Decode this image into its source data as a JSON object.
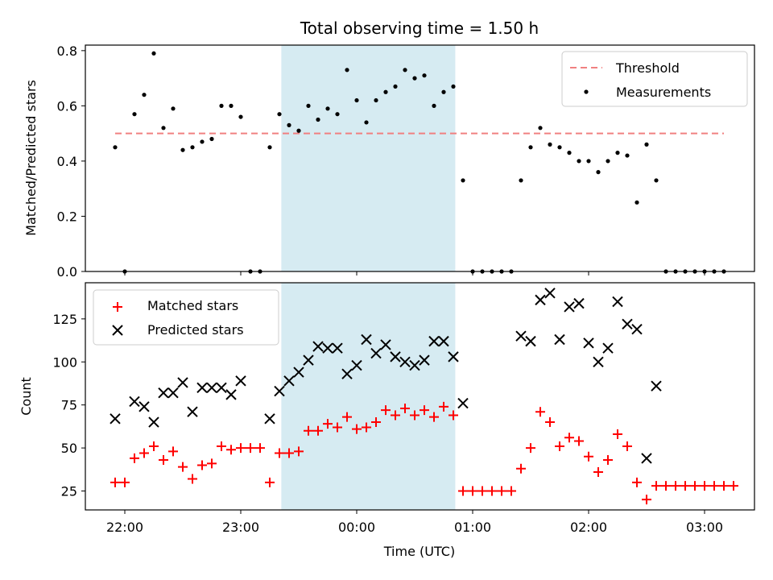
{
  "chart_data": {
    "type": "scatter",
    "title": "Total observing time = 1.50 h",
    "xlabel": "Time (UTC)",
    "x_tick_labels": [
      "22:00",
      "23:00",
      "00:00",
      "01:00",
      "02:00",
      "03:00"
    ],
    "highlight_span": [
      "23:21",
      "00:51"
    ],
    "panels": [
      {
        "name": "fraction",
        "ylabel": "Matched/Predicted stars",
        "ylim": [
          0,
          0.82
        ],
        "y_ticks": [
          "0.0",
          "0.2",
          "0.4",
          "0.6",
          "0.8"
        ],
        "legend_position": "top-right",
        "threshold": {
          "name": "Threshold",
          "value": 0.5,
          "color": "#f08080",
          "x_range": [
            "21:55",
            "03:10"
          ]
        },
        "series": [
          {
            "name": "Measurements",
            "marker": "dot",
            "color": "#000000",
            "points": [
              [
                "21:55",
                0.45
              ],
              [
                "22:00",
                0.0
              ],
              [
                "22:05",
                0.57
              ],
              [
                "22:10",
                0.64
              ],
              [
                "22:15",
                0.79
              ],
              [
                "22:20",
                0.52
              ],
              [
                "22:25",
                0.59
              ],
              [
                "22:30",
                0.44
              ],
              [
                "22:35",
                0.45
              ],
              [
                "22:40",
                0.47
              ],
              [
                "22:45",
                0.48
              ],
              [
                "22:50",
                0.6
              ],
              [
                "22:55",
                0.6
              ],
              [
                "23:00",
                0.56
              ],
              [
                "23:05",
                0.0
              ],
              [
                "23:10",
                0.0
              ],
              [
                "23:15",
                0.45
              ],
              [
                "23:20",
                0.57
              ],
              [
                "23:25",
                0.53
              ],
              [
                "23:30",
                0.51
              ],
              [
                "23:35",
                0.6
              ],
              [
                "23:40",
                0.55
              ],
              [
                "23:45",
                0.59
              ],
              [
                "23:50",
                0.57
              ],
              [
                "23:55",
                0.73
              ],
              [
                "00:00",
                0.62
              ],
              [
                "00:05",
                0.54
              ],
              [
                "00:10",
                0.62
              ],
              [
                "00:15",
                0.65
              ],
              [
                "00:20",
                0.67
              ],
              [
                "00:25",
                0.73
              ],
              [
                "00:30",
                0.7
              ],
              [
                "00:35",
                0.71
              ],
              [
                "00:40",
                0.6
              ],
              [
                "00:45",
                0.65
              ],
              [
                "00:50",
                0.67
              ],
              [
                "00:55",
                0.33
              ],
              [
                "01:00",
                0.0
              ],
              [
                "01:05",
                0.0
              ],
              [
                "01:10",
                0.0
              ],
              [
                "01:15",
                0.0
              ],
              [
                "01:20",
                0.0
              ],
              [
                "01:25",
                0.33
              ],
              [
                "01:30",
                0.45
              ],
              [
                "01:35",
                0.52
              ],
              [
                "01:40",
                0.46
              ],
              [
                "01:45",
                0.45
              ],
              [
                "01:50",
                0.43
              ],
              [
                "01:55",
                0.4
              ],
              [
                "02:00",
                0.4
              ],
              [
                "02:05",
                0.36
              ],
              [
                "02:10",
                0.4
              ],
              [
                "02:15",
                0.43
              ],
              [
                "02:20",
                0.42
              ],
              [
                "02:25",
                0.25
              ],
              [
                "02:30",
                0.46
              ],
              [
                "02:35",
                0.33
              ],
              [
                "02:40",
                0.0
              ],
              [
                "02:45",
                0.0
              ],
              [
                "02:50",
                0.0
              ],
              [
                "02:55",
                0.0
              ],
              [
                "03:00",
                0.0
              ],
              [
                "03:05",
                0.0
              ],
              [
                "03:10",
                0.0
              ]
            ]
          }
        ]
      },
      {
        "name": "counts",
        "ylabel": "Count",
        "ylim": [
          14,
          146
        ],
        "y_ticks": [
          "25",
          "50",
          "75",
          "100",
          "125"
        ],
        "legend_position": "top-left",
        "series": [
          {
            "name": "Matched stars",
            "marker": "plus",
            "color": "#ff0000",
            "points": [
              [
                "21:55",
                30
              ],
              [
                "22:00",
                30
              ],
              [
                "22:05",
                44
              ],
              [
                "22:10",
                47
              ],
              [
                "22:15",
                51
              ],
              [
                "22:20",
                43
              ],
              [
                "22:25",
                48
              ],
              [
                "22:30",
                39
              ],
              [
                "22:35",
                32
              ],
              [
                "22:40",
                40
              ],
              [
                "22:45",
                41
              ],
              [
                "22:50",
                51
              ],
              [
                "22:55",
                49
              ],
              [
                "23:00",
                50
              ],
              [
                "23:05",
                50
              ],
              [
                "23:10",
                50
              ],
              [
                "23:15",
                30
              ],
              [
                "23:20",
                47
              ],
              [
                "23:25",
                47
              ],
              [
                "23:30",
                48
              ],
              [
                "23:35",
                60
              ],
              [
                "23:40",
                60
              ],
              [
                "23:45",
                64
              ],
              [
                "23:50",
                62
              ],
              [
                "23:55",
                68
              ],
              [
                "00:00",
                61
              ],
              [
                "00:05",
                62
              ],
              [
                "00:10",
                65
              ],
              [
                "00:15",
                72
              ],
              [
                "00:20",
                69
              ],
              [
                "00:25",
                73
              ],
              [
                "00:30",
                69
              ],
              [
                "00:35",
                72
              ],
              [
                "00:40",
                68
              ],
              [
                "00:45",
                74
              ],
              [
                "00:50",
                69
              ],
              [
                "00:55",
                25
              ],
              [
                "01:00",
                25
              ],
              [
                "01:05",
                25
              ],
              [
                "01:10",
                25
              ],
              [
                "01:15",
                25
              ],
              [
                "01:20",
                25
              ],
              [
                "01:25",
                38
              ],
              [
                "01:30",
                50
              ],
              [
                "01:35",
                71
              ],
              [
                "01:40",
                65
              ],
              [
                "01:45",
                51
              ],
              [
                "01:50",
                56
              ],
              [
                "01:55",
                54
              ],
              [
                "02:00",
                45
              ],
              [
                "02:05",
                36
              ],
              [
                "02:10",
                43
              ],
              [
                "02:15",
                58
              ],
              [
                "02:20",
                51
              ],
              [
                "02:25",
                30
              ],
              [
                "02:30",
                20
              ],
              [
                "02:35",
                28
              ],
              [
                "02:40",
                28
              ],
              [
                "02:45",
                28
              ],
              [
                "02:50",
                28
              ],
              [
                "02:55",
                28
              ],
              [
                "03:00",
                28
              ],
              [
                "03:05",
                28
              ],
              [
                "03:10",
                28
              ],
              [
                "03:15",
                28
              ]
            ]
          },
          {
            "name": "Predicted stars",
            "marker": "x",
            "color": "#000000",
            "points": [
              [
                "21:55",
                67
              ],
              [
                "22:05",
                77
              ],
              [
                "22:10",
                74
              ],
              [
                "22:15",
                65
              ],
              [
                "22:20",
                82
              ],
              [
                "22:25",
                82
              ],
              [
                "22:30",
                88
              ],
              [
                "22:35",
                71
              ],
              [
                "22:40",
                85
              ],
              [
                "22:45",
                85
              ],
              [
                "22:50",
                85
              ],
              [
                "22:55",
                81
              ],
              [
                "23:00",
                89
              ],
              [
                "23:15",
                67
              ],
              [
                "23:20",
                83
              ],
              [
                "23:25",
                89
              ],
              [
                "23:30",
                94
              ],
              [
                "23:35",
                101
              ],
              [
                "23:40",
                109
              ],
              [
                "23:45",
                108
              ],
              [
                "23:50",
                108
              ],
              [
                "23:55",
                93
              ],
              [
                "00:00",
                98
              ],
              [
                "00:05",
                113
              ],
              [
                "00:10",
                105
              ],
              [
                "00:15",
                110
              ],
              [
                "00:20",
                103
              ],
              [
                "00:25",
                100
              ],
              [
                "00:30",
                98
              ],
              [
                "00:35",
                101
              ],
              [
                "00:40",
                112
              ],
              [
                "00:45",
                112
              ],
              [
                "00:50",
                103
              ],
              [
                "00:55",
                76
              ],
              [
                "01:25",
                115
              ],
              [
                "01:30",
                112
              ],
              [
                "01:35",
                136
              ],
              [
                "01:40",
                140
              ],
              [
                "01:45",
                113
              ],
              [
                "01:50",
                132
              ],
              [
                "01:55",
                134
              ],
              [
                "02:00",
                111
              ],
              [
                "02:05",
                100
              ],
              [
                "02:10",
                108
              ],
              [
                "02:15",
                135
              ],
              [
                "02:20",
                122
              ],
              [
                "02:25",
                119
              ],
              [
                "02:30",
                44
              ],
              [
                "02:35",
                86
              ]
            ]
          }
        ]
      }
    ]
  }
}
